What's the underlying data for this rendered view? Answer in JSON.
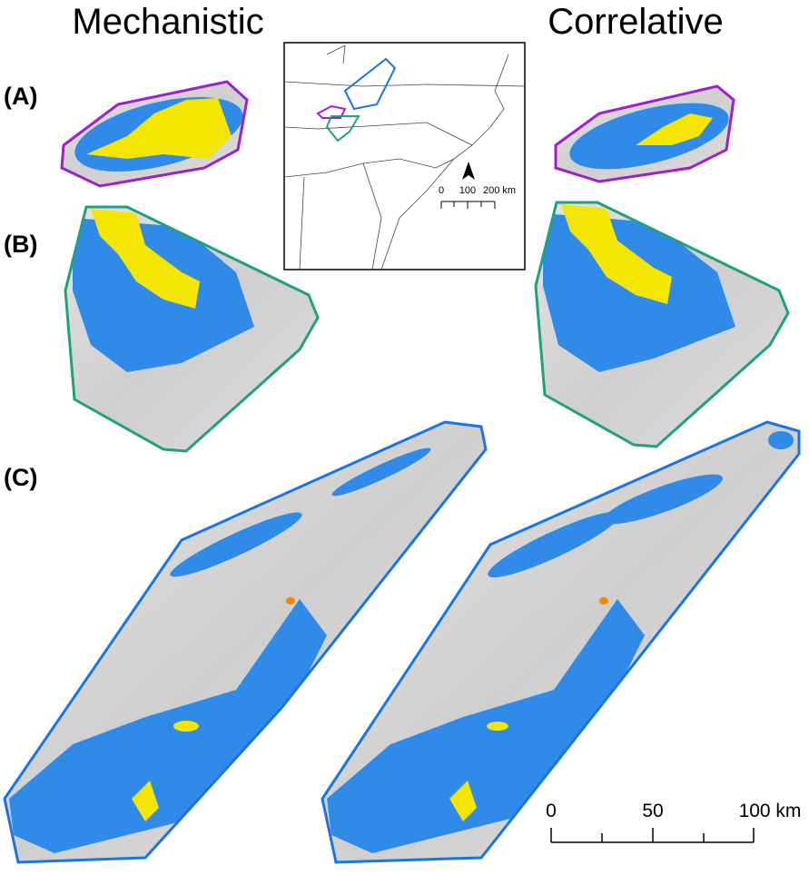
{
  "headers": {
    "left": "Mechanistic",
    "right": "Correlative"
  },
  "panels": [
    "(A)",
    "(B)",
    "(C)"
  ],
  "inset_scale": [
    "0",
    "100",
    "200 km"
  ],
  "main_scale": [
    "0",
    "50",
    "100 km"
  ]
}
